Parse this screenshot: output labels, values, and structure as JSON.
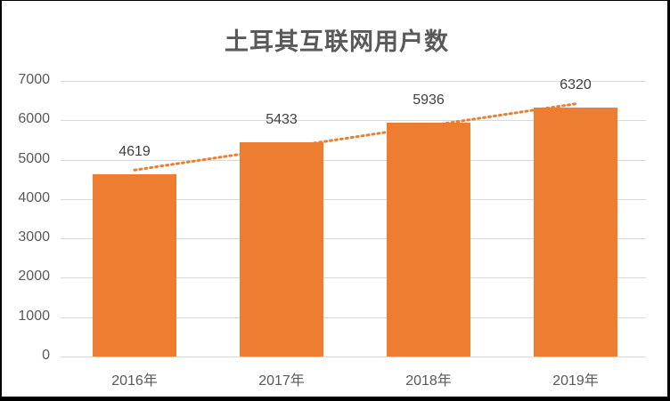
{
  "chart_data": {
    "type": "bar",
    "title": "土耳其互联网用户数",
    "categories": [
      "2016年",
      "2017年",
      "2018年",
      "2019年"
    ],
    "values": [
      4619,
      5433,
      5936,
      6320
    ],
    "data_labels": [
      "4619",
      "5433",
      "5936",
      "6320"
    ],
    "xlabel": "",
    "ylabel": "",
    "ylim": [
      0,
      7000
    ],
    "yticks": [
      "0",
      "1000",
      "2000",
      "3000",
      "4000",
      "5000",
      "6000",
      "7000"
    ],
    "grid": true,
    "legend": "none",
    "trendline": {
      "type": "linear",
      "style": "dotted"
    },
    "colors": {
      "bar": "#ed7d31",
      "trendline": "#ed7d31",
      "grid": "#d9d9d9",
      "text": "#595959"
    }
  }
}
